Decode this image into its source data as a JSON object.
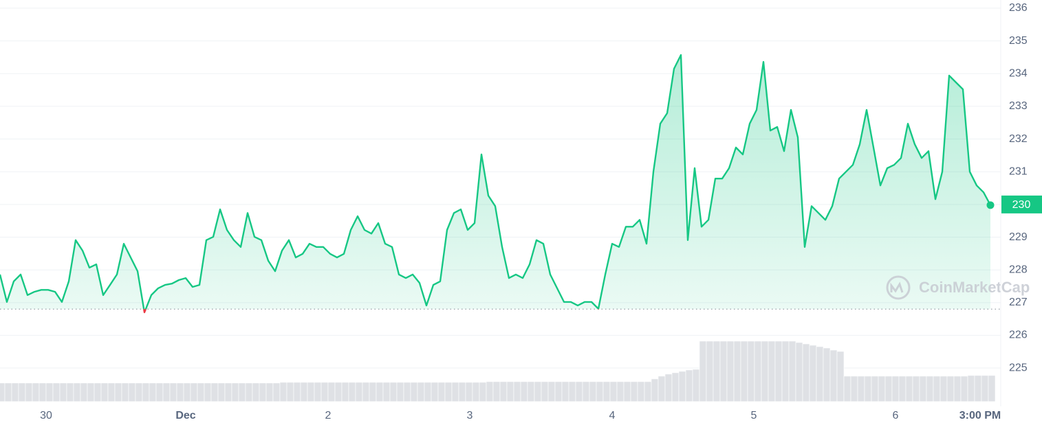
{
  "chart_data": {
    "type": "line",
    "color": "#16c784",
    "below_color": "#ea3943",
    "grid": true,
    "ylim": [
      224.5,
      236.25
    ],
    "yticks": [
      225,
      226,
      227,
      228,
      229,
      230,
      231,
      232,
      233,
      234,
      235,
      236
    ],
    "xlim": [
      0,
      144
    ],
    "xticks": [
      {
        "value": 6.7,
        "label": "30"
      },
      {
        "value": 27,
        "label": "Dec"
      },
      {
        "value": 47.7,
        "label": "2"
      },
      {
        "value": 68.3,
        "label": "3"
      },
      {
        "value": 89,
        "label": "4"
      },
      {
        "value": 109.6,
        "label": "5"
      },
      {
        "value": 130.2,
        "label": "6"
      },
      {
        "value": 142.5,
        "label": "3:00 PM"
      }
    ],
    "baseline": 226.8,
    "current_price": 230,
    "watermark": "CoinMarketCap",
    "values": [
      227.86,
      227.02,
      227.65,
      227.86,
      227.23,
      227.33,
      227.39,
      227.39,
      227.33,
      227.02,
      227.65,
      228.91,
      228.59,
      228.07,
      228.17,
      227.23,
      227.54,
      227.86,
      228.8,
      228.38,
      227.96,
      226.7,
      227.23,
      227.44,
      227.54,
      227.58,
      227.69,
      227.75,
      227.48,
      227.54,
      228.91,
      229.01,
      229.85,
      229.22,
      228.91,
      228.7,
      229.74,
      229.01,
      228.91,
      228.28,
      227.96,
      228.59,
      228.91,
      228.38,
      228.49,
      228.8,
      228.7,
      228.7,
      228.49,
      228.38,
      228.49,
      229.22,
      229.64,
      229.22,
      229.11,
      229.43,
      228.8,
      228.7,
      227.86,
      227.75,
      227.86,
      227.6,
      226.91,
      227.54,
      227.65,
      229.22,
      229.74,
      229.85,
      229.22,
      229.43,
      231.53,
      230.27,
      229.95,
      228.7,
      227.75,
      227.86,
      227.75,
      228.17,
      228.91,
      228.8,
      227.86,
      227.44,
      227.02,
      227.02,
      226.91,
      227.02,
      227.02,
      226.81,
      227.86,
      228.8,
      228.7,
      229.32,
      229.32,
      229.53,
      228.8,
      231,
      232.47,
      232.79,
      234.15,
      234.57,
      228.91,
      231.11,
      229.32,
      229.53,
      230.79,
      230.79,
      231.11,
      231.74,
      231.53,
      232.47,
      232.89,
      234.36,
      232.26,
      232.37,
      231.63,
      232.89,
      232.05,
      228.7,
      229.95,
      229.74,
      229.53,
      229.95,
      230.79,
      231,
      231.21,
      231.84,
      232.89,
      231.74,
      230.58,
      231.11,
      231.21,
      231.42,
      232.47,
      231.84,
      231.42,
      231.63,
      230.16,
      231,
      233.94,
      233.73,
      233.52,
      231,
      230.58,
      230.37,
      229.98
    ],
    "volume_color": "#dfe1e5",
    "y2lim": [
      0,
      100
    ],
    "volume": [
      27,
      27,
      27,
      27,
      27,
      27,
      27,
      27,
      27,
      27,
      27,
      27,
      27,
      27,
      27,
      27,
      27,
      27,
      27,
      27,
      27,
      27,
      27,
      27,
      27,
      27,
      27,
      27,
      27,
      27,
      27,
      27,
      27,
      27,
      27,
      27,
      27,
      27,
      27,
      27,
      27,
      28,
      28,
      28,
      28,
      28,
      28,
      28,
      28,
      28,
      28,
      28,
      28,
      28,
      28,
      28,
      28,
      28,
      28,
      28,
      28,
      28,
      28,
      28,
      28,
      28,
      28,
      28,
      28,
      28,
      28,
      29,
      29,
      29,
      29,
      29,
      29,
      29,
      29,
      29,
      29,
      29,
      29,
      29,
      29,
      29,
      29,
      29,
      29,
      29,
      29,
      29,
      29,
      29,
      29,
      33,
      37,
      40,
      42,
      44,
      46,
      47,
      88,
      88,
      88,
      88,
      88,
      88,
      88,
      88,
      88,
      88,
      88,
      88,
      88,
      88,
      86,
      84,
      82,
      80,
      78,
      75,
      73,
      37,
      37,
      37,
      37,
      37,
      37,
      37,
      37,
      37,
      37,
      37,
      37,
      37,
      37,
      37,
      37,
      37,
      37,
      38,
      38,
      38,
      38
    ]
  }
}
